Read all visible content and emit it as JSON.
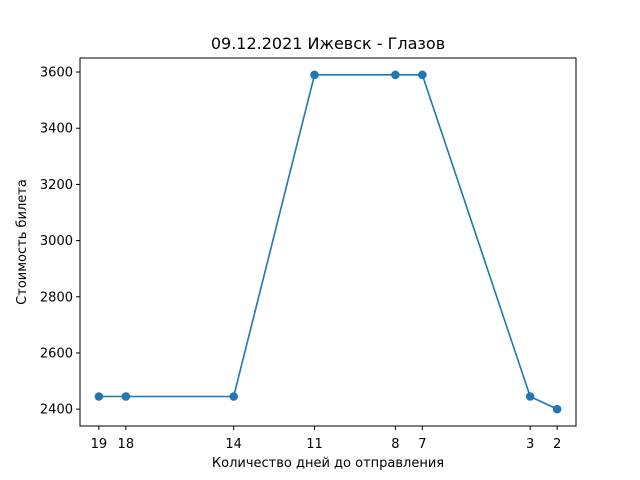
{
  "chart_data": {
    "type": "line",
    "title": "09.12.2021 Ижевск - Глазов",
    "xlabel": "Количество дней до отправления",
    "ylabel": "Стоимость билета",
    "x": [
      19,
      18,
      14,
      11,
      8,
      7,
      3,
      2
    ],
    "series": [
      {
        "values": [
          2445,
          2445,
          2445,
          3590,
          3590,
          3590,
          2445,
          2400
        ]
      }
    ],
    "x_ticks": [
      19,
      18,
      14,
      11,
      8,
      7,
      3,
      2
    ],
    "y_ticks": [
      2400,
      2600,
      2800,
      3000,
      3200,
      3400,
      3600
    ],
    "x_direction": "descending",
    "xlim": [
      19.7,
      1.3
    ],
    "ylim": [
      2340,
      3650
    ],
    "grid": false,
    "line_color": "#1f77b4",
    "marker": "circle"
  }
}
